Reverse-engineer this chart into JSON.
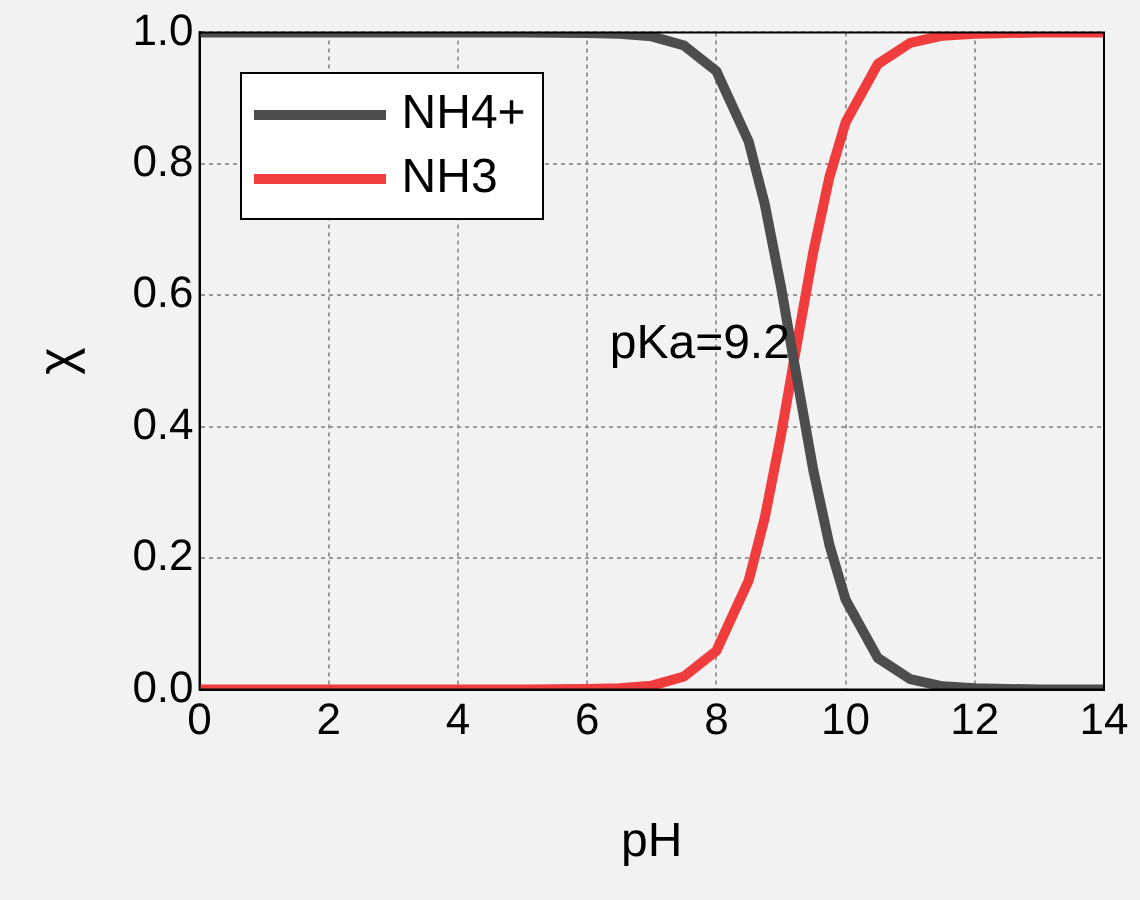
{
  "chart_data": {
    "type": "line",
    "xlabel": "pH",
    "ylabel": "χ",
    "x": [
      0,
      1,
      2,
      3,
      4,
      5,
      6,
      6.5,
      7,
      7.5,
      8,
      8.5,
      8.75,
      9,
      9.2,
      9.5,
      9.75,
      10,
      10.5,
      11,
      11.5,
      12,
      13,
      14
    ],
    "series": [
      {
        "name": "NH4+",
        "color": "#4d4d4d",
        "values": [
          1,
          1,
          1,
          1,
          1,
          1,
          0.999,
          0.998,
          0.994,
          0.98,
          0.941,
          0.834,
          0.738,
          0.613,
          0.5,
          0.334,
          0.22,
          0.137,
          0.048,
          0.016,
          0.005,
          0.002,
          0,
          0
        ]
      },
      {
        "name": "NH3",
        "color": "#f03c3c",
        "values": [
          0,
          0,
          0,
          0,
          0,
          0,
          0.001,
          0.002,
          0.006,
          0.02,
          0.059,
          0.166,
          0.262,
          0.387,
          0.5,
          0.666,
          0.78,
          0.863,
          0.952,
          0.984,
          0.995,
          0.998,
          1,
          1
        ]
      }
    ],
    "xlim": [
      0,
      14
    ],
    "xticks": [
      0,
      2,
      4,
      6,
      8,
      10,
      12,
      14
    ],
    "ylim": [
      0,
      1
    ],
    "yticks": [
      {
        "value": 0,
        "label": "0.0"
      },
      0.2,
      0.4,
      0.6,
      0.8,
      {
        "value": 1,
        "label": "1.0"
      }
    ],
    "annotations": [
      {
        "text": "pKa=9.2",
        "x": 9.2,
        "y": 0.5
      }
    ],
    "grid": true,
    "legend": "top left",
    "marker": "none",
    "line_style": "solid"
  }
}
